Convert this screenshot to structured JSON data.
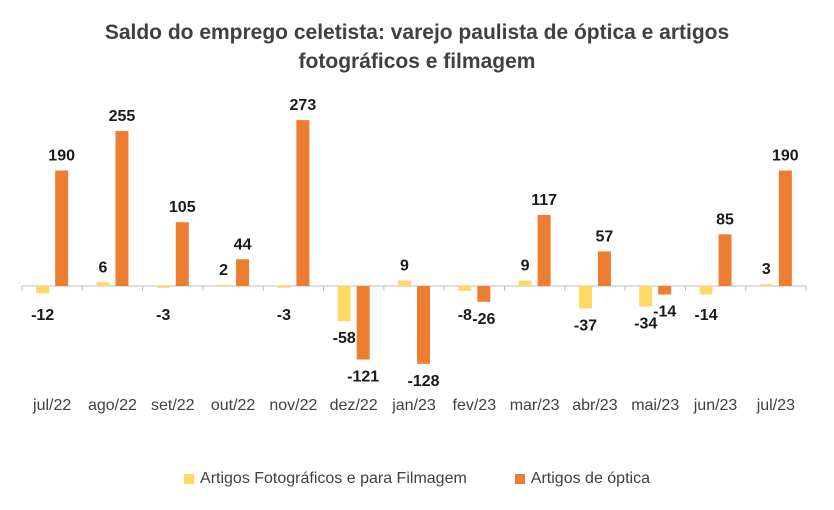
{
  "chart_data": {
    "type": "bar",
    "title_lines": [
      "Saldo do emprego celetista: varejo paulista de óptica e artigos",
      "fotográficos e filmagem"
    ],
    "categories": [
      "jul/22",
      "ago/22",
      "set/22",
      "out/22",
      "nov/22",
      "dez/22",
      "jan/23",
      "fev/23",
      "mar/23",
      "abr/23",
      "mai/23",
      "jun/23",
      "jul/23"
    ],
    "series": [
      {
        "name": "Artigos Fotográficos e para Filmagem",
        "color": "#ffd966",
        "values": [
          -12,
          6,
          -3,
          2,
          -3,
          -58,
          9,
          -8,
          9,
          -37,
          -34,
          -14,
          3
        ]
      },
      {
        "name": "Artigos de óptica",
        "color": "#ed7d31",
        "values": [
          190,
          255,
          105,
          44,
          273,
          -121,
          -128,
          -26,
          117,
          57,
          -14,
          85,
          190
        ]
      }
    ],
    "ylim": [
      -140,
      290
    ],
    "grid": false,
    "legend_position": "bottom"
  }
}
